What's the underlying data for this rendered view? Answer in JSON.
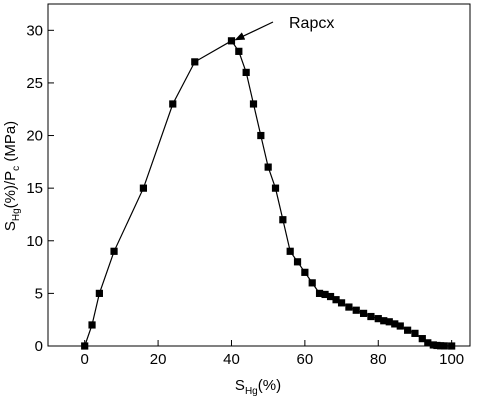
{
  "chart_data": {
    "type": "line",
    "xlabel": {
      "main": "S",
      "sub": "Hg",
      "tail": "(%)"
    },
    "ylabel": {
      "s": "S",
      "sub1": "Hg",
      "mid": "(%)/P",
      "sub2": "c",
      "tail": " (MPa)"
    },
    "xlim": [
      -10,
      105
    ],
    "ylim": [
      0,
      32.5
    ],
    "xticks": [
      0,
      20,
      40,
      60,
      80,
      100
    ],
    "yticks": [
      0,
      5,
      10,
      15,
      20,
      25,
      30
    ],
    "grid": false,
    "annotation": {
      "text": "Rapcx",
      "x": 40,
      "y": 29
    },
    "series": [
      {
        "marker": "square",
        "color": "#000000",
        "x": [
          0,
          2,
          4,
          8,
          16,
          24,
          30,
          40,
          42,
          44,
          46,
          48,
          50,
          52,
          54,
          56,
          58,
          60,
          62,
          64,
          65.5,
          67,
          68.5,
          70,
          72,
          74,
          76,
          78,
          80,
          81.5,
          83,
          84.5,
          86,
          88,
          90,
          92,
          93.5,
          95,
          96,
          97,
          98,
          100
        ],
        "y": [
          0,
          2,
          5,
          9,
          15,
          23,
          27,
          29,
          28,
          26,
          23,
          20,
          17,
          15,
          12,
          9,
          8,
          7,
          6,
          5,
          4.9,
          4.7,
          4.4,
          4.1,
          3.7,
          3.4,
          3.1,
          2.8,
          2.6,
          2.4,
          2.3,
          2.1,
          1.9,
          1.5,
          1.2,
          0.7,
          0.3,
          0.1,
          0.05,
          0.02,
          0.01,
          0
        ]
      }
    ]
  }
}
